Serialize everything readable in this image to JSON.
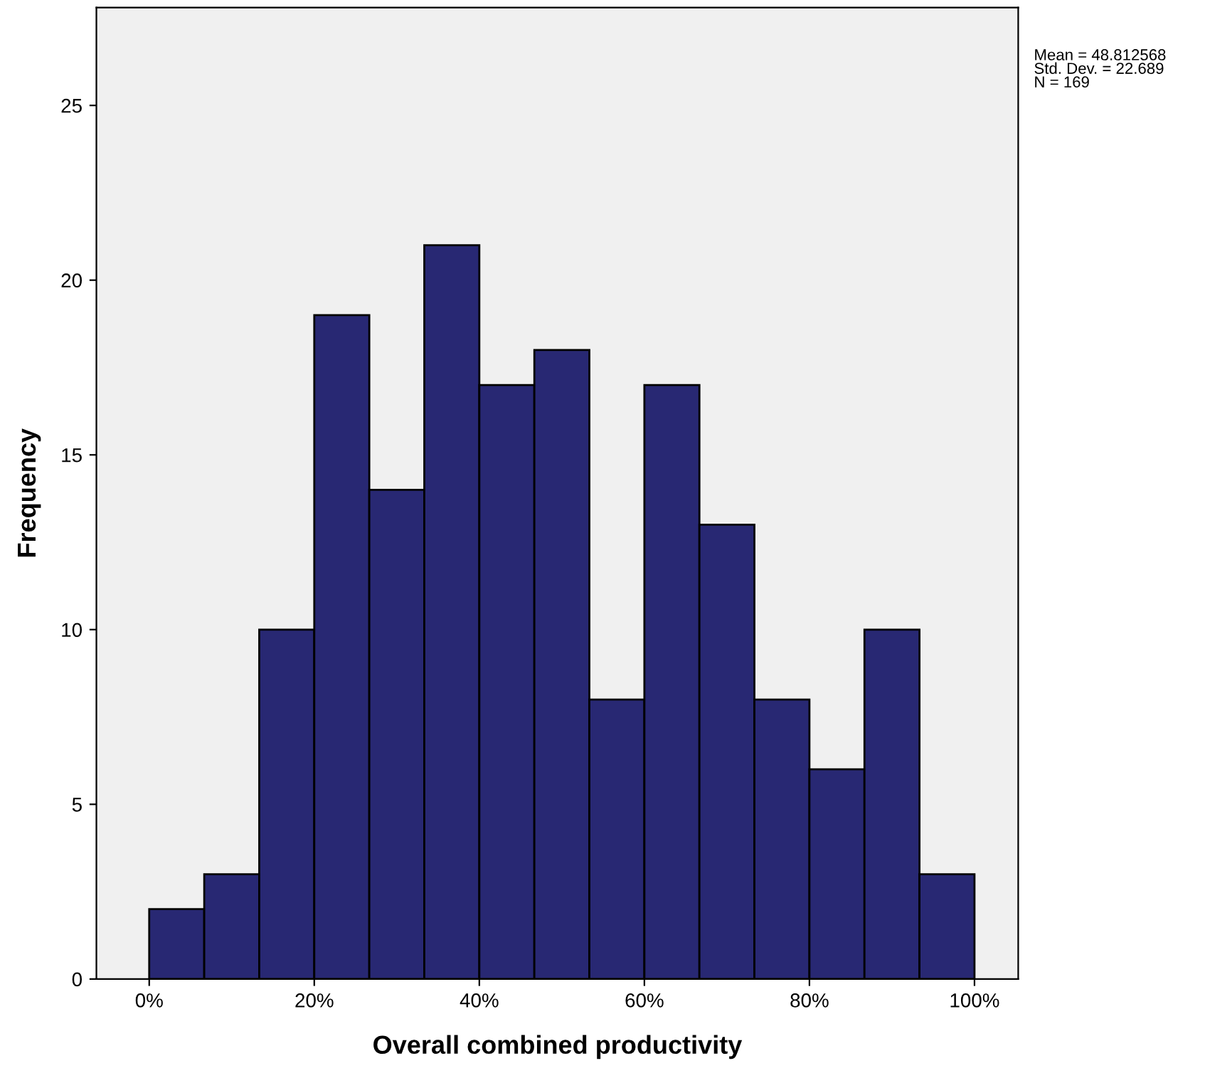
{
  "chart_data": {
    "type": "histogram",
    "xlabel": "Overall combined productivity",
    "ylabel": "Frequency",
    "bins": [
      0,
      6.667,
      13.333,
      20,
      26.667,
      33.333,
      40,
      46.667,
      53.333,
      60,
      66.667,
      73.333,
      80,
      86.667,
      93.333,
      100
    ],
    "values": [
      2,
      3,
      10,
      19,
      14,
      21,
      17,
      18,
      8,
      17,
      13,
      8,
      6,
      10,
      3
    ],
    "color": "#282873",
    "xlim": [
      -6.4,
      105.3
    ],
    "ylim": [
      0,
      27.8
    ],
    "xticks": [
      {
        "value": 0,
        "label": "0%"
      },
      {
        "value": 20,
        "label": "20%"
      },
      {
        "value": 40,
        "label": "40%"
      },
      {
        "value": 60,
        "label": "60%"
      },
      {
        "value": 80,
        "label": "80%"
      },
      {
        "value": 100,
        "label": "100%"
      }
    ],
    "yticks": [
      0,
      5,
      10,
      15,
      20,
      25
    ],
    "grid": false,
    "legend": false,
    "annotations": [
      "Mean = 48.812568\nStd. Dev. = 22.689\nN = 169"
    ]
  }
}
